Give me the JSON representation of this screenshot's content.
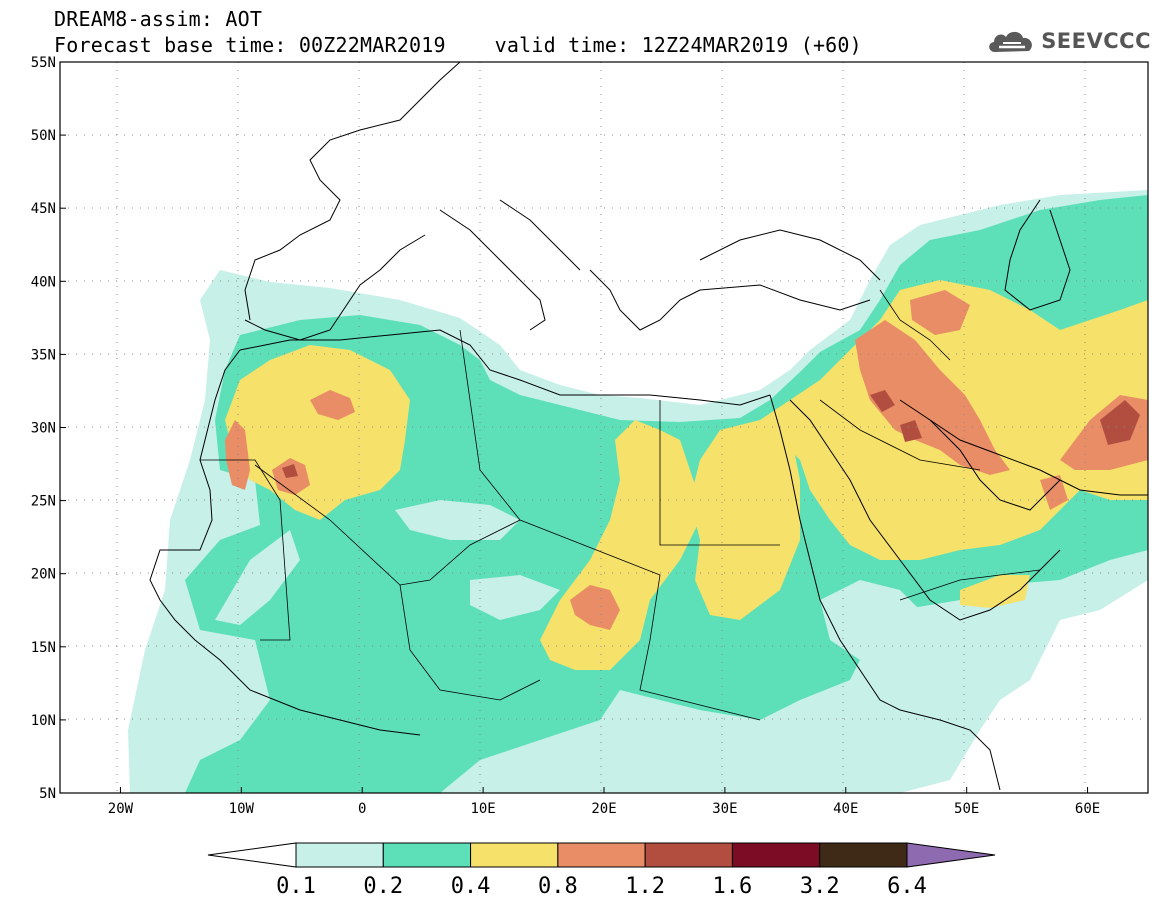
{
  "title": {
    "line1": "DREAM8-assim: AOT",
    "line2": "Forecast base time: 00Z22MAR2019    valid time: 12Z24MAR2019 (+60)"
  },
  "logo": {
    "text": "SEEVCCC",
    "icon": "cloud-icon"
  },
  "map": {
    "lon_range": [
      -25,
      65
    ],
    "lat_range": [
      5,
      55
    ],
    "lat_ticks": [
      "5N",
      "10N",
      "15N",
      "20N",
      "25N",
      "30N",
      "35N",
      "40N",
      "45N",
      "50N",
      "55N"
    ],
    "lon_ticks": [
      "20W",
      "10W",
      "0",
      "10E",
      "20E",
      "30E",
      "40E",
      "50E",
      "60E"
    ],
    "grid": "dotted"
  },
  "colorbar": {
    "labels": [
      "0.1",
      "0.2",
      "0.4",
      "0.8",
      "1.2",
      "1.6",
      "3.2",
      "6.4"
    ],
    "colors": [
      "#ffffff",
      "#c6f0e8",
      "#5ddfb8",
      "#f6e16a",
      "#e88d66",
      "#b24e40",
      "#7c0c26",
      "#3f2a17",
      "#8e6ab0"
    ]
  }
}
